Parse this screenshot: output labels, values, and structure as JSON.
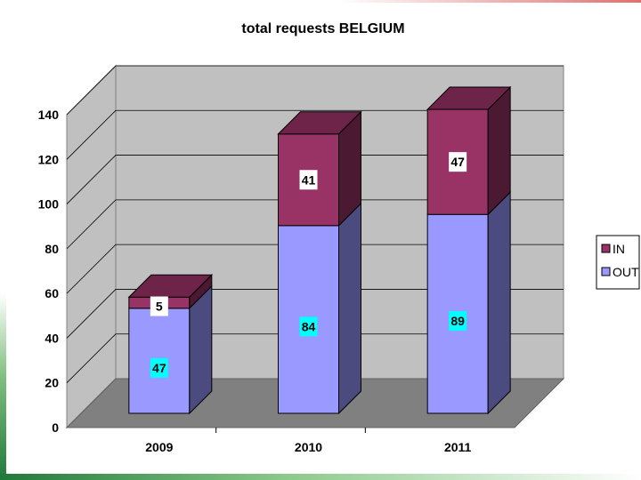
{
  "chart_data": {
    "type": "bar",
    "stacked": true,
    "three_d": true,
    "title": "total requests BELGIUM",
    "categories": [
      "2009",
      "2010",
      "2011"
    ],
    "series": [
      {
        "name": "OUT",
        "values": [
          47,
          84,
          89
        ],
        "color": "#9999ff",
        "side_color": "#4b4b7f",
        "top_color": "#7f7fd0"
      },
      {
        "name": "IN",
        "values": [
          5,
          41,
          47
        ],
        "color": "#993366",
        "side_color": "#4c1933",
        "top_color": "#6e2448"
      }
    ],
    "yticks": [
      "0",
      "20",
      "40",
      "60",
      "80",
      "100",
      "120",
      "140"
    ],
    "ylim": [
      0,
      140
    ],
    "grid": true,
    "legend": "right",
    "colors": {
      "wall": "#c0c0c0",
      "floor": "#808080",
      "label_bg": "#00ffff",
      "label_bg_alt": "#ffffff"
    }
  }
}
